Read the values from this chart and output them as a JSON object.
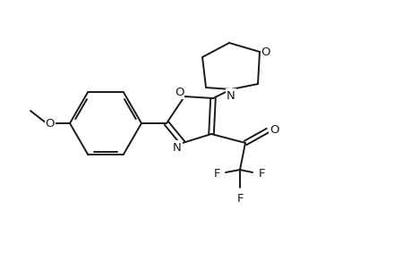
{
  "background_color": "#ffffff",
  "line_color": "#1a1a1a",
  "line_width": 1.4,
  "font_size": 9.5,
  "figsize": [
    4.6,
    3.0
  ],
  "dpi": 100,
  "xlim": [
    0,
    4.6
  ],
  "ylim": [
    0,
    3.0
  ]
}
